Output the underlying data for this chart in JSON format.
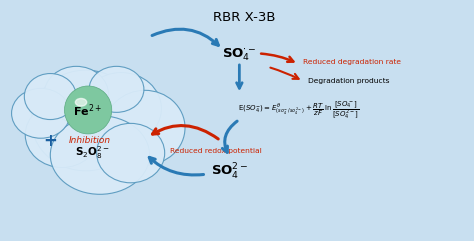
{
  "title": "RBR X-3B",
  "bg_color": "#c8dff0",
  "cloud_color": "#d8eaf8",
  "cloud_edge_color": "#5a9abf",
  "sphere_color": "#7ec8a0",
  "arrow_blue": "#2a7ab5",
  "arrow_red": "#cc2200",
  "text_red": "#cc2200",
  "text_blue": "#1a5fa0",
  "fe_label": "Fe$^{2+}$",
  "s2o8_label": "S$_2$O$_8^{2-}$",
  "so4_top_label": "SO$_4^{\\cdot-}$",
  "so4_bottom_label": "SO$_4^{2-}$",
  "inhibition_label": "Inhibition",
  "reduced_deg_label": "Reduced degradation rate",
  "deg_products_label": "Degradation products",
  "reduced_redox_label": "Reduced redox potential"
}
